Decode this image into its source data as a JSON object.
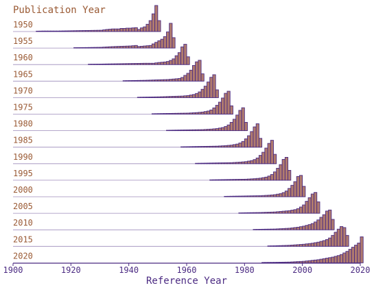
{
  "chart_data": {
    "type": "bar",
    "title": "Publication Year",
    "xlabel": "Reference Year",
    "xlim": [
      1900,
      2020
    ],
    "x_ticks": [
      "1900",
      "1920",
      "1940",
      "1960",
      "1980",
      "2000",
      "2020"
    ],
    "bin_years": 1,
    "colors": {
      "bar_fill": "#b07b6e",
      "bar_edge": "#4b2a82",
      "title": "#9a5a34",
      "axis": "#4b2a82"
    },
    "series": [
      {
        "name": "1950",
        "rel_peak_offsets": [
          -1,
          0
        ],
        "values_by_offset_from_publication_year": {
          "-50": 0.01,
          "-45": 0.01,
          "-40": 0.02,
          "-35": 0.02,
          "-30": 0.03,
          "-25": 0.04,
          "-20": 0.05,
          "-18": 0.08,
          "-16": 0.1,
          "-15": 0.1,
          "-14": 0.1,
          "-13": 0.12,
          "-12": 0.12,
          "-11": 0.13,
          "-10": 0.13,
          "-9": 0.14,
          "-8": 0.15,
          "-7": 0.08,
          "-6": 0.14,
          "-5": 0.18,
          "-4": 0.28,
          "-3": 0.42,
          "-2": 0.68,
          "-1": 1.0,
          "0": 0.42
        }
      },
      {
        "name": "1955",
        "values_by_offset_from_publication_year": {
          "-50": 0.01,
          "-40": 0.01,
          "-30": 0.02,
          "-25": 0.03,
          "-22": 0.05,
          "-20": 0.06,
          "-15": 0.08,
          "-13": 0.1,
          "-12": 0.06,
          "-10": 0.08,
          "-8": 0.1,
          "-7": 0.16,
          "-6": 0.22,
          "-5": 0.28,
          "-4": 0.34,
          "-3": 0.44,
          "-2": 0.62,
          "-1": 0.95,
          "0": 0.4
        }
      },
      {
        "name": "1960",
        "values_by_offset_from_publication_year": {
          "-50": 0.01,
          "-40": 0.01,
          "-30": 0.02,
          "-25": 0.03,
          "-20": 0.04,
          "-15": 0.05,
          "-12": 0.05,
          "-10": 0.08,
          "-9": 0.09,
          "-8": 0.1,
          "-7": 0.12,
          "-6": 0.16,
          "-5": 0.22,
          "-4": 0.34,
          "-3": 0.46,
          "-2": 0.68,
          "-1": 0.78,
          "0": 0.3
        }
      },
      {
        "name": "1965",
        "values_by_offset_from_publication_year": {
          "-50": 0.01,
          "-40": 0.01,
          "-30": 0.01,
          "-25": 0.02,
          "-20": 0.03,
          "-15": 0.05,
          "-12": 0.06,
          "-10": 0.08,
          "-8": 0.1,
          "-7": 0.14,
          "-6": 0.22,
          "-5": 0.3,
          "-4": 0.42,
          "-3": 0.6,
          "-2": 0.74,
          "-1": 0.8,
          "0": 0.28
        }
      },
      {
        "name": "1970",
        "values_by_offset_from_publication_year": {
          "-50": 0.01,
          "-40": 0.01,
          "-30": 0.01,
          "-25": 0.02,
          "-20": 0.03,
          "-15": 0.05,
          "-12": 0.06,
          "-10": 0.08,
          "-8": 0.12,
          "-7": 0.16,
          "-6": 0.22,
          "-5": 0.32,
          "-4": 0.44,
          "-3": 0.6,
          "-2": 0.78,
          "-1": 0.88,
          "0": 0.3
        }
      },
      {
        "name": "1975",
        "values_by_offset_from_publication_year": {
          "-50": 0.01,
          "-40": 0.01,
          "-30": 0.01,
          "-25": 0.02,
          "-20": 0.03,
          "-15": 0.04,
          "-12": 0.06,
          "-10": 0.08,
          "-8": 0.12,
          "-7": 0.16,
          "-6": 0.24,
          "-5": 0.34,
          "-4": 0.46,
          "-3": 0.62,
          "-2": 0.8,
          "-1": 0.88,
          "0": 0.32
        }
      },
      {
        "name": "1980",
        "values_by_offset_from_publication_year": {
          "-50": 0.01,
          "-40": 0.01,
          "-30": 0.01,
          "-25": 0.02,
          "-20": 0.03,
          "-15": 0.04,
          "-12": 0.06,
          "-10": 0.08,
          "-8": 0.12,
          "-7": 0.16,
          "-6": 0.22,
          "-5": 0.32,
          "-4": 0.44,
          "-3": 0.6,
          "-2": 0.78,
          "-1": 0.88,
          "0": 0.32
        }
      },
      {
        "name": "1985",
        "values_by_offset_from_publication_year": {
          "-50": 0.01,
          "-40": 0.01,
          "-30": 0.01,
          "-25": 0.02,
          "-20": 0.03,
          "-15": 0.04,
          "-12": 0.06,
          "-10": 0.08,
          "-8": 0.12,
          "-7": 0.16,
          "-6": 0.22,
          "-5": 0.32,
          "-4": 0.44,
          "-3": 0.6,
          "-2": 0.78,
          "-1": 0.9,
          "0": 0.34
        }
      },
      {
        "name": "1990",
        "values_by_offset_from_publication_year": {
          "-50": 0.01,
          "-40": 0.01,
          "-30": 0.01,
          "-25": 0.02,
          "-20": 0.03,
          "-15": 0.04,
          "-12": 0.06,
          "-10": 0.08,
          "-8": 0.12,
          "-7": 0.16,
          "-6": 0.22,
          "-5": 0.32,
          "-4": 0.44,
          "-3": 0.6,
          "-2": 0.78,
          "-1": 0.9,
          "0": 0.36
        }
      },
      {
        "name": "1995",
        "values_by_offset_from_publication_year": {
          "-50": 0.01,
          "-40": 0.01,
          "-30": 0.01,
          "-25": 0.02,
          "-20": 0.03,
          "-15": 0.04,
          "-12": 0.06,
          "-10": 0.08,
          "-8": 0.12,
          "-7": 0.16,
          "-6": 0.22,
          "-5": 0.32,
          "-4": 0.46,
          "-3": 0.6,
          "-2": 0.8,
          "-1": 0.88,
          "0": 0.38
        }
      },
      {
        "name": "2000",
        "values_by_offset_from_publication_year": {
          "-50": 0.01,
          "-40": 0.01,
          "-30": 0.01,
          "-25": 0.02,
          "-20": 0.03,
          "-15": 0.04,
          "-12": 0.06,
          "-10": 0.08,
          "-8": 0.12,
          "-7": 0.16,
          "-6": 0.22,
          "-5": 0.32,
          "-4": 0.44,
          "-3": 0.58,
          "-2": 0.78,
          "-1": 0.82,
          "0": 0.4
        }
      },
      {
        "name": "2005",
        "values_by_offset_from_publication_year": {
          "-50": 0.01,
          "-40": 0.01,
          "-30": 0.01,
          "-25": 0.02,
          "-20": 0.03,
          "-15": 0.05,
          "-12": 0.08,
          "-10": 0.1,
          "-8": 0.14,
          "-7": 0.18,
          "-6": 0.24,
          "-5": 0.32,
          "-4": 0.46,
          "-3": 0.6,
          "-2": 0.74,
          "-1": 0.8,
          "0": 0.44
        }
      },
      {
        "name": "2010",
        "values_by_offset_from_publication_year": {
          "-50": 0.01,
          "-40": 0.01,
          "-30": 0.01,
          "-25": 0.02,
          "-20": 0.03,
          "-15": 0.06,
          "-12": 0.1,
          "-10": 0.14,
          "-8": 0.2,
          "-7": 0.24,
          "-6": 0.3,
          "-5": 0.38,
          "-4": 0.48,
          "-3": 0.58,
          "-2": 0.72,
          "-1": 0.76,
          "0": 0.4
        }
      },
      {
        "name": "2015",
        "values_by_offset_from_publication_year": {
          "-50": 0.01,
          "-40": 0.01,
          "-30": 0.01,
          "-25": 0.02,
          "-20": 0.04,
          "-15": 0.08,
          "-12": 0.12,
          "-10": 0.16,
          "-8": 0.22,
          "-7": 0.26,
          "-6": 0.32,
          "-5": 0.42,
          "-4": 0.54,
          "-3": 0.66,
          "-2": 0.76,
          "-1": 0.72,
          "0": 0.42
        }
      },
      {
        "name": "2020",
        "values_by_offset_from_publication_year": {
          "-50": 0.01,
          "-40": 0.01,
          "-30": 0.02,
          "-25": 0.03,
          "-20": 0.06,
          "-15": 0.12,
          "-12": 0.18,
          "-10": 0.22,
          "-8": 0.28,
          "-7": 0.32,
          "-6": 0.38,
          "-5": 0.44,
          "-4": 0.52,
          "-3": 0.6,
          "-2": 0.68,
          "-1": 0.76,
          "0": 1.0
        }
      }
    ]
  }
}
